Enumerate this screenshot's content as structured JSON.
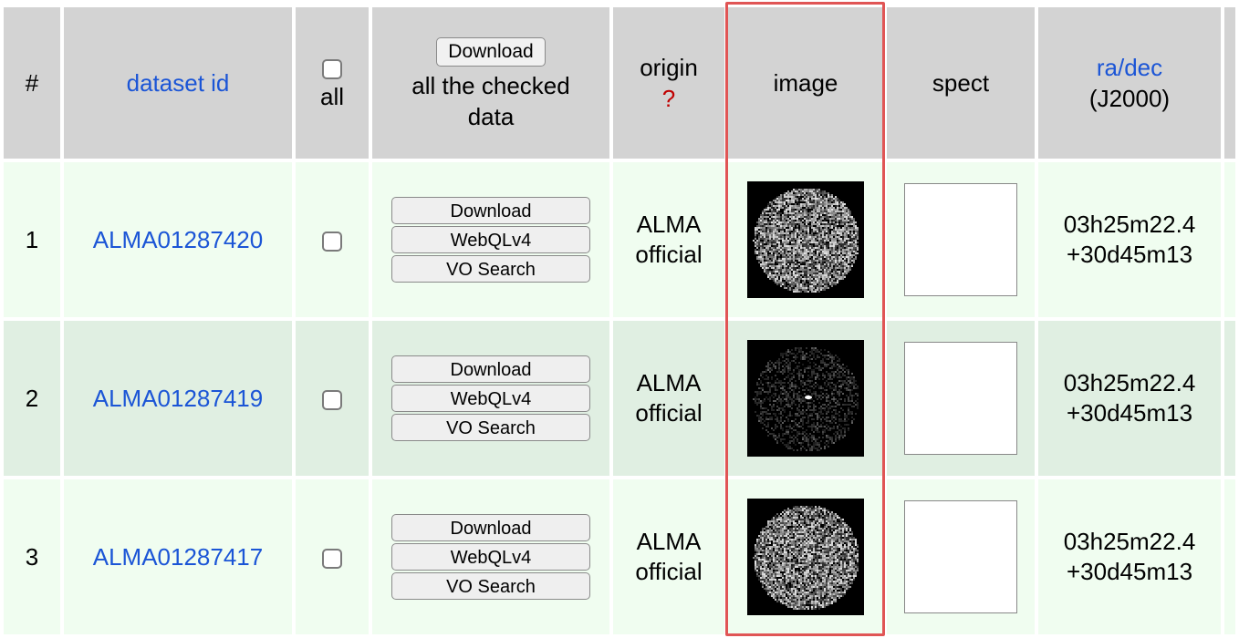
{
  "header": {
    "num": "#",
    "dataset_id": "dataset id",
    "all_label": "all",
    "download_button": "Download",
    "download_caption_1": "all the checked",
    "download_caption_2": "data",
    "origin": "origin",
    "origin_help": "?",
    "image": "image",
    "spect": "spect",
    "radec": "ra/dec",
    "epoch": "(J2000)"
  },
  "actions": {
    "download": "Download",
    "webql": "WebQLv4",
    "vo_search": "VO Search"
  },
  "rows": [
    {
      "num": "1",
      "dataset_id": "ALMA01287420",
      "origin_1": "ALMA",
      "origin_2": "official",
      "ra": "03h25m22.4",
      "dec": "+30d45m13",
      "image": "noise-disc"
    },
    {
      "num": "2",
      "dataset_id": "ALMA01287419",
      "origin_1": "ALMA",
      "origin_2": "official",
      "ra": "03h25m22.4",
      "dec": "+30d45m13",
      "image": "source-disc"
    },
    {
      "num": "3",
      "dataset_id": "ALMA01287417",
      "origin_1": "ALMA",
      "origin_2": "official",
      "ra": "03h25m22.4",
      "dec": "+30d45m13",
      "image": "noise-disc"
    }
  ],
  "colors": {
    "header_bg": "#d3d3d3",
    "row_odd_bg": "#f0fdf0",
    "row_even_bg": "#e0efe2",
    "link": "#1b55d6",
    "help_mark": "#c00000",
    "highlight": "#e05555"
  }
}
